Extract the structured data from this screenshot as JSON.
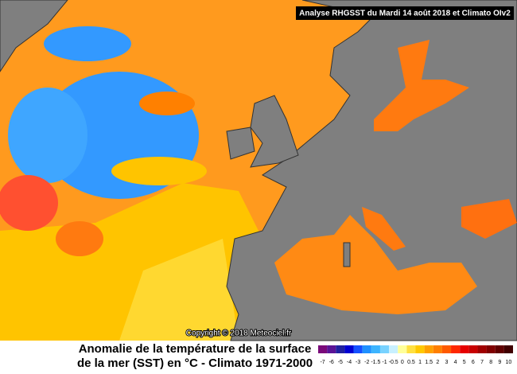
{
  "header": {
    "title": "Analyse RHGSST  du Mardi 14 août 2018 et Climato OIv2"
  },
  "copyright": "Copyright © 2018 Meteociel.fr",
  "caption": {
    "line1": "Anomalie de la température de la surface",
    "line2": "de la mer (SST) en °C - Climato 1971-2000"
  },
  "legend": {
    "items": [
      {
        "value": -7,
        "color": "#7a0a7a"
      },
      {
        "value": -6,
        "color": "#5a1496"
      },
      {
        "value": -5,
        "color": "#2020a0"
      },
      {
        "value": -4,
        "color": "#0000d2"
      },
      {
        "value": -3,
        "color": "#1450ff"
      },
      {
        "value": -2,
        "color": "#1e90ff"
      },
      {
        "value": -1.5,
        "color": "#3cb4ff"
      },
      {
        "value": -1,
        "color": "#78d2ff"
      },
      {
        "value": -0.5,
        "color": "#c8f0ff"
      },
      {
        "value": 0,
        "color": "#ffff99"
      },
      {
        "value": 0.5,
        "color": "#ffe040"
      },
      {
        "value": 1,
        "color": "#ffc800"
      },
      {
        "value": 1.5,
        "color": "#ffa000"
      },
      {
        "value": 2,
        "color": "#ff7f00"
      },
      {
        "value": 3,
        "color": "#ff5a00"
      },
      {
        "value": 4,
        "color": "#ff2800"
      },
      {
        "value": 5,
        "color": "#e60000"
      },
      {
        "value": 6,
        "color": "#c80000"
      },
      {
        "value": 7,
        "color": "#a00000"
      },
      {
        "value": 8,
        "color": "#800000"
      },
      {
        "value": 9,
        "color": "#600000"
      },
      {
        "value": 10,
        "color": "#400000"
      }
    ]
  }
}
